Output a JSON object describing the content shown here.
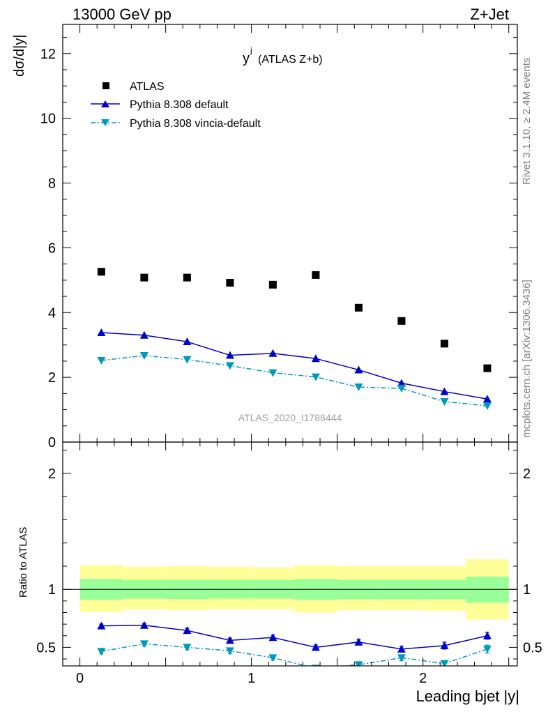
{
  "header": {
    "left_label": "13000 GeV pp",
    "right_label": "Z+Jet"
  },
  "side_labels": {
    "rivet": "Rivet 3.1.10, ≥ 2.4M events",
    "source": "mcplots.cern.ch [arXiv:1306.3436]"
  },
  "chart_data": [
    {
      "type": "scatter",
      "title": "yʲ (ATLAS Z+b)",
      "title_main": "y",
      "title_sup": "j",
      "title_rest": "(ATLAS Z+b)",
      "ylabel": "dσ/d|y|",
      "xlabel": "",
      "watermark": "ATLAS_2020_I1788444",
      "xlim": [
        -0.1,
        2.55
      ],
      "ylim": [
        0,
        12.9
      ],
      "yticks": [
        0,
        2,
        4,
        6,
        8,
        10,
        12
      ],
      "grid": false,
      "legend_position": "top-left",
      "x": [
        0.125,
        0.375,
        0.625,
        0.875,
        1.125,
        1.375,
        1.625,
        1.875,
        2.125,
        2.375
      ],
      "series": [
        {
          "name": "ATLAS",
          "style": "black-square-marker",
          "color": "#000000",
          "values": [
            5.26,
            5.08,
            5.08,
            4.92,
            4.86,
            5.16,
            4.15,
            3.74,
            3.04,
            2.28
          ]
        },
        {
          "name": "Pythia 8.308 default",
          "style": "solid-line-up-triangle",
          "color": "#0000cc",
          "values": [
            3.38,
            3.3,
            3.1,
            2.68,
            2.74,
            2.58,
            2.23,
            1.82,
            1.56,
            1.33
          ]
        },
        {
          "name": "Pythia 8.308 vincia-default",
          "style": "dashdot-line-down-triangle",
          "color": "#0099bb",
          "values": [
            2.52,
            2.67,
            2.55,
            2.36,
            2.14,
            2.01,
            1.7,
            1.66,
            1.25,
            1.12
          ]
        }
      ]
    },
    {
      "type": "line",
      "title": "",
      "ylabel": "Ratio to ATLAS",
      "xlabel": "Leading bjet |y|",
      "xlim": [
        -0.1,
        2.55
      ],
      "ylim": [
        0.34,
        2.27
      ],
      "xticks": [
        0,
        1,
        2
      ],
      "yticks": [
        0.5,
        1,
        2
      ],
      "grid": false,
      "reference_line": 1,
      "bands": {
        "x_edges": [
          0,
          0.25,
          0.5,
          0.75,
          1.0,
          1.25,
          1.5,
          1.75,
          2.0,
          2.25,
          2.5
        ],
        "stat_color": "#99ff99",
        "total_color": "#ffff99",
        "stat_lo": [
          0.91,
          0.92,
          0.915,
          0.92,
          0.92,
          0.91,
          0.915,
          0.915,
          0.915,
          0.885
        ],
        "stat_hi": [
          1.09,
          1.08,
          1.08,
          1.08,
          1.08,
          1.09,
          1.08,
          1.08,
          1.08,
          1.11
        ],
        "total_lo": [
          0.805,
          0.825,
          0.82,
          0.83,
          0.83,
          0.8,
          0.82,
          0.82,
          0.815,
          0.74
        ],
        "total_hi": [
          1.21,
          1.195,
          1.2,
          1.195,
          1.19,
          1.21,
          1.2,
          1.2,
          1.2,
          1.26
        ]
      },
      "x": [
        0.125,
        0.375,
        0.625,
        0.875,
        1.125,
        1.375,
        1.625,
        1.875,
        2.125,
        2.375
      ],
      "series": [
        {
          "name": "Pythia 8.308 default",
          "color": "#0000cc",
          "values": [
            0.685,
            0.69,
            0.645,
            0.56,
            0.585,
            0.5,
            0.545,
            0.485,
            0.515,
            0.6
          ],
          "errors": [
            0.015,
            0.015,
            0.02,
            0.02,
            0.02,
            0.02,
            0.025,
            0.025,
            0.03,
            0.03
          ]
        },
        {
          "name": "Pythia 8.308 vincia-default",
          "color": "#0099bb",
          "values": [
            0.465,
            0.53,
            0.5,
            0.47,
            0.41,
            0.32,
            0.35,
            0.41,
            0.36,
            0.485
          ],
          "errors": [
            0.02,
            0.02,
            0.02,
            0.025,
            0.02,
            0.02,
            0.025,
            0.025,
            0.025,
            0.035
          ]
        }
      ]
    }
  ]
}
